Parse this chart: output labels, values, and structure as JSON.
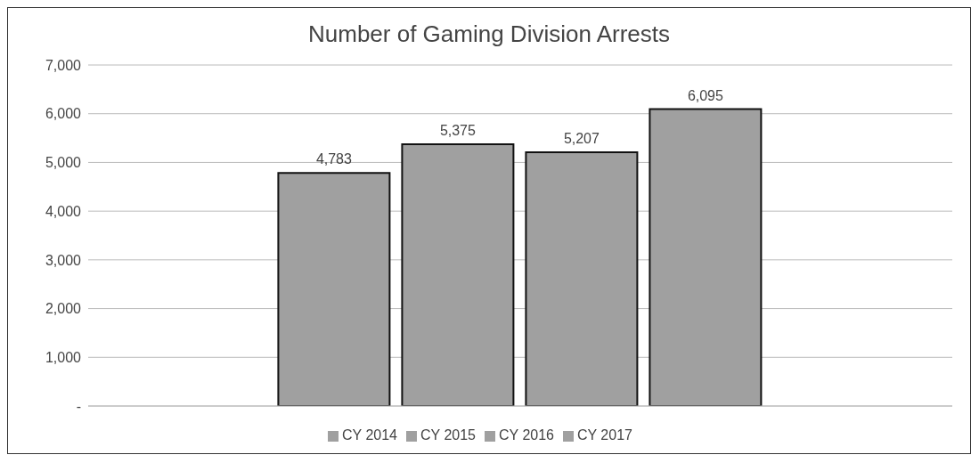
{
  "chart_data": {
    "type": "bar",
    "title": "Number of Gaming Division Arrests",
    "categories": [
      null
    ],
    "series": [
      {
        "name": "CY 2014",
        "color": "#a0a0a0",
        "values": [
          4783
        ],
        "value_labels": [
          "4,783"
        ]
      },
      {
        "name": "CY 2015",
        "color": "#a0a0a0",
        "values": [
          5375
        ],
        "value_labels": [
          "5,375"
        ]
      },
      {
        "name": "CY 2016",
        "color": "#a0a0a0",
        "values": [
          5207
        ],
        "value_labels": [
          "5,207"
        ]
      },
      {
        "name": "CY 2017",
        "color": "#a0a0a0",
        "values": [
          6095
        ],
        "value_labels": [
          "6,095"
        ]
      }
    ],
    "ylim": [
      0,
      7000
    ],
    "yticks": [
      {
        "value": 0,
        "label": "-"
      },
      {
        "value": 1000,
        "label": "1,000"
      },
      {
        "value": 2000,
        "label": "2,000"
      },
      {
        "value": 3000,
        "label": "3,000"
      },
      {
        "value": 4000,
        "label": "4,000"
      },
      {
        "value": 5000,
        "label": "5,000"
      },
      {
        "value": 6000,
        "label": "6,000"
      },
      {
        "value": 7000,
        "label": "7,000"
      }
    ],
    "grid": "y",
    "legend": "bottom"
  }
}
